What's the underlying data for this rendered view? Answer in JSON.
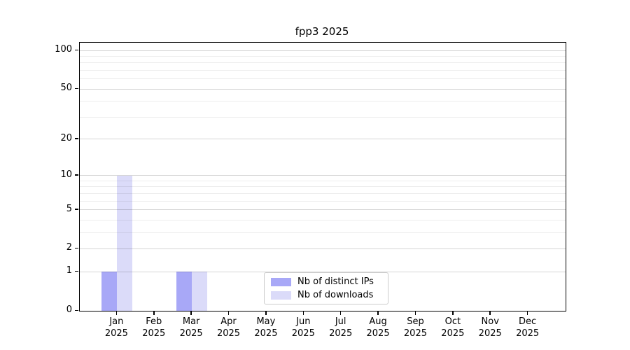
{
  "chart_data": {
    "type": "bar",
    "title": "fpp3 2025",
    "categories": [
      "Jan 2025",
      "Feb 2025",
      "Mar 2025",
      "Apr 2025",
      "May 2025",
      "Jun 2025",
      "Jul 2025",
      "Aug 2025",
      "Sep 2025",
      "Oct 2025",
      "Nov 2025",
      "Dec 2025"
    ],
    "series": [
      {
        "name": "Nb of distinct IPs",
        "color": "#a8a8f7",
        "values": [
          1,
          0,
          1,
          0,
          0,
          0,
          0,
          0,
          0,
          0,
          0,
          0
        ]
      },
      {
        "name": "Nb of downloads",
        "color": "#dbdbf9",
        "values": [
          10,
          0,
          1,
          0,
          0,
          0,
          0,
          0,
          0,
          0,
          0,
          0
        ]
      }
    ],
    "xlabel": "",
    "ylabel": "",
    "yscale": "log1p",
    "ylim": [
      0,
      115
    ],
    "yticks": [
      0,
      1,
      2,
      5,
      10,
      20,
      50,
      100
    ],
    "grid": {
      "major_values": [
        1,
        2,
        5,
        10,
        20,
        50,
        100
      ],
      "minor_values": [
        3,
        4,
        6,
        7,
        8,
        9,
        30,
        40,
        60,
        70,
        80,
        90
      ],
      "major_color": "rgba(0,0,0,0.17)",
      "minor_color": "rgba(0,0,0,0.07)"
    },
    "legend": {
      "position": "lower center",
      "entries": [
        "Nb of distinct IPs",
        "Nb of downloads"
      ]
    }
  }
}
